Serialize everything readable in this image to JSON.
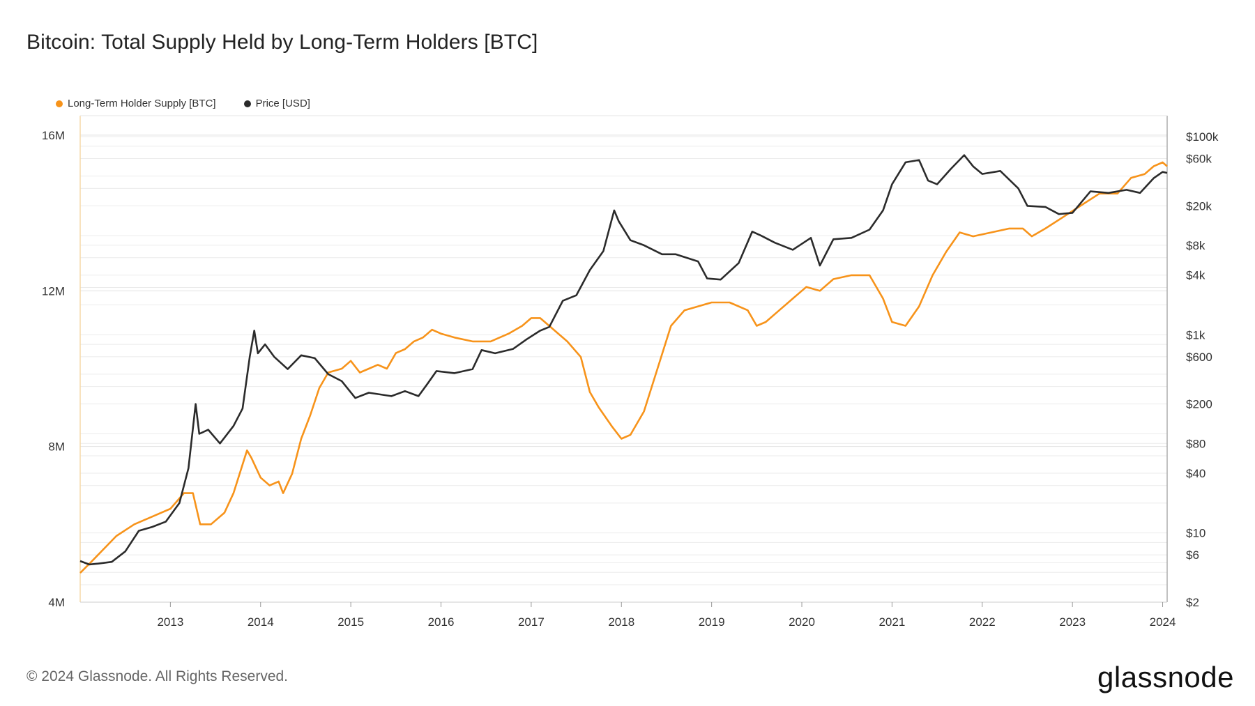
{
  "title": "Bitcoin: Total Supply Held by Long-Term Holders [BTC]",
  "footer": {
    "copyright": "© 2024 Glassnode. All Rights Reserved.",
    "logo": "glassnode"
  },
  "colors": {
    "lth_supply": "#F7931A",
    "price": "#2B2B2B",
    "grid": "#EBEBEB",
    "axis": "#BBBBBB"
  },
  "chart_data": {
    "type": "line",
    "title": "Bitcoin: Total Supply Held by Long-Term Holders [BTC]",
    "legend_position": "top-left",
    "grid": true,
    "x_ticks": [
      "2013",
      "2014",
      "2015",
      "2016",
      "2017",
      "2018",
      "2019",
      "2020",
      "2021",
      "2022",
      "2023",
      "2024"
    ],
    "xlim": [
      2012.0,
      2024.05
    ],
    "y_left": {
      "ticks": [
        4000000,
        8000000,
        12000000,
        16000000
      ],
      "tick_labels": [
        "4M",
        "8M",
        "12M",
        "16M"
      ],
      "lim": [
        4000000,
        16500000
      ]
    },
    "y_right": {
      "scale": "log",
      "ticks": [
        2,
        6,
        10,
        40,
        80,
        200,
        600,
        1000,
        4000,
        8000,
        20000,
        60000,
        100000
      ],
      "tick_labels": [
        "$2",
        "$6",
        "$10",
        "$40",
        "$80",
        "$200",
        "$600",
        "$1k",
        "$4k",
        "$8k",
        "$20k",
        "$60k",
        "$100k"
      ],
      "lim": [
        2,
        100000
      ]
    },
    "series": [
      {
        "name": "Long-Term Holder Supply [BTC]",
        "axis": "left",
        "points": [
          [
            2012.0,
            4.75
          ],
          [
            2012.15,
            5.1
          ],
          [
            2012.4,
            5.7
          ],
          [
            2012.6,
            6.0
          ],
          [
            2012.8,
            6.2
          ],
          [
            2013.0,
            6.4
          ],
          [
            2013.15,
            6.8
          ],
          [
            2013.25,
            6.8
          ],
          [
            2013.33,
            6.0
          ],
          [
            2013.45,
            6.0
          ],
          [
            2013.6,
            6.3
          ],
          [
            2013.7,
            6.8
          ],
          [
            2013.85,
            7.9
          ],
          [
            2013.9,
            7.7
          ],
          [
            2014.0,
            7.2
          ],
          [
            2014.1,
            7.0
          ],
          [
            2014.2,
            7.1
          ],
          [
            2014.25,
            6.8
          ],
          [
            2014.35,
            7.3
          ],
          [
            2014.45,
            8.2
          ],
          [
            2014.55,
            8.8
          ],
          [
            2014.65,
            9.5
          ],
          [
            2014.75,
            9.9
          ],
          [
            2014.9,
            10.0
          ],
          [
            2015.0,
            10.2
          ],
          [
            2015.1,
            9.9
          ],
          [
            2015.2,
            10.0
          ],
          [
            2015.3,
            10.1
          ],
          [
            2015.4,
            10.0
          ],
          [
            2015.5,
            10.4
          ],
          [
            2015.6,
            10.5
          ],
          [
            2015.7,
            10.7
          ],
          [
            2015.8,
            10.8
          ],
          [
            2015.9,
            11.0
          ],
          [
            2016.0,
            10.9
          ],
          [
            2016.15,
            10.8
          ],
          [
            2016.35,
            10.7
          ],
          [
            2016.55,
            10.7
          ],
          [
            2016.75,
            10.9
          ],
          [
            2016.9,
            11.1
          ],
          [
            2017.0,
            11.3
          ],
          [
            2017.1,
            11.3
          ],
          [
            2017.25,
            11.0
          ],
          [
            2017.4,
            10.7
          ],
          [
            2017.55,
            10.3
          ],
          [
            2017.65,
            9.4
          ],
          [
            2017.75,
            9.0
          ],
          [
            2017.9,
            8.5
          ],
          [
            2018.0,
            8.2
          ],
          [
            2018.1,
            8.3
          ],
          [
            2018.25,
            8.9
          ],
          [
            2018.4,
            10.0
          ],
          [
            2018.55,
            11.1
          ],
          [
            2018.7,
            11.5
          ],
          [
            2018.85,
            11.6
          ],
          [
            2019.0,
            11.7
          ],
          [
            2019.2,
            11.7
          ],
          [
            2019.4,
            11.5
          ],
          [
            2019.5,
            11.1
          ],
          [
            2019.6,
            11.2
          ],
          [
            2019.75,
            11.5
          ],
          [
            2019.9,
            11.8
          ],
          [
            2020.05,
            12.1
          ],
          [
            2020.2,
            12.0
          ],
          [
            2020.35,
            12.3
          ],
          [
            2020.55,
            12.4
          ],
          [
            2020.75,
            12.4
          ],
          [
            2020.9,
            11.8
          ],
          [
            2021.0,
            11.2
          ],
          [
            2021.15,
            11.1
          ],
          [
            2021.3,
            11.6
          ],
          [
            2021.45,
            12.4
          ],
          [
            2021.6,
            13.0
          ],
          [
            2021.75,
            13.5
          ],
          [
            2021.9,
            13.4
          ],
          [
            2022.1,
            13.5
          ],
          [
            2022.3,
            13.6
          ],
          [
            2022.45,
            13.6
          ],
          [
            2022.55,
            13.4
          ],
          [
            2022.7,
            13.6
          ],
          [
            2022.9,
            13.9
          ],
          [
            2023.1,
            14.2
          ],
          [
            2023.3,
            14.5
          ],
          [
            2023.5,
            14.5
          ],
          [
            2023.65,
            14.9
          ],
          [
            2023.8,
            15.0
          ],
          [
            2023.9,
            15.2
          ],
          [
            2024.0,
            15.3
          ],
          [
            2024.05,
            15.2
          ]
        ]
      },
      {
        "name": "Price [USD]",
        "axis": "right",
        "points": [
          [
            2012.0,
            5.2
          ],
          [
            2012.1,
            4.8
          ],
          [
            2012.2,
            4.9
          ],
          [
            2012.35,
            5.1
          ],
          [
            2012.5,
            6.5
          ],
          [
            2012.65,
            10.5
          ],
          [
            2012.8,
            11.5
          ],
          [
            2012.95,
            13.0
          ],
          [
            2013.1,
            20.0
          ],
          [
            2013.2,
            45.0
          ],
          [
            2013.28,
            200.0
          ],
          [
            2013.32,
            100.0
          ],
          [
            2013.42,
            110.0
          ],
          [
            2013.55,
            80.0
          ],
          [
            2013.7,
            120.0
          ],
          [
            2013.8,
            180.0
          ],
          [
            2013.88,
            600.0
          ],
          [
            2013.93,
            1100.0
          ],
          [
            2013.97,
            650.0
          ],
          [
            2014.05,
            800.0
          ],
          [
            2014.15,
            600.0
          ],
          [
            2014.3,
            450.0
          ],
          [
            2014.45,
            620.0
          ],
          [
            2014.6,
            580.0
          ],
          [
            2014.75,
            400.0
          ],
          [
            2014.9,
            340.0
          ],
          [
            2015.05,
            230.0
          ],
          [
            2015.2,
            260.0
          ],
          [
            2015.45,
            240.0
          ],
          [
            2015.6,
            270.0
          ],
          [
            2015.75,
            240.0
          ],
          [
            2015.85,
            320.0
          ],
          [
            2015.95,
            430.0
          ],
          [
            2016.15,
            410.0
          ],
          [
            2016.35,
            450.0
          ],
          [
            2016.45,
            700.0
          ],
          [
            2016.6,
            650.0
          ],
          [
            2016.8,
            720.0
          ],
          [
            2016.95,
            900.0
          ],
          [
            2017.1,
            1100.0
          ],
          [
            2017.2,
            1200.0
          ],
          [
            2017.35,
            2200.0
          ],
          [
            2017.5,
            2500.0
          ],
          [
            2017.65,
            4500.0
          ],
          [
            2017.8,
            7000.0
          ],
          [
            2017.92,
            18000.0
          ],
          [
            2017.97,
            14000.0
          ],
          [
            2018.1,
            9000.0
          ],
          [
            2018.25,
            8000.0
          ],
          [
            2018.45,
            6500.0
          ],
          [
            2018.6,
            6500.0
          ],
          [
            2018.85,
            5500.0
          ],
          [
            2018.95,
            3700.0
          ],
          [
            2019.1,
            3600.0
          ],
          [
            2019.3,
            5300.0
          ],
          [
            2019.45,
            11000.0
          ],
          [
            2019.55,
            10000.0
          ],
          [
            2019.7,
            8500.0
          ],
          [
            2019.9,
            7200.0
          ],
          [
            2020.1,
            9500.0
          ],
          [
            2020.2,
            5000.0
          ],
          [
            2020.35,
            9200.0
          ],
          [
            2020.55,
            9500.0
          ],
          [
            2020.75,
            11500.0
          ],
          [
            2020.9,
            18000.0
          ],
          [
            2021.0,
            33000.0
          ],
          [
            2021.15,
            55000.0
          ],
          [
            2021.3,
            58000.0
          ],
          [
            2021.4,
            36000.0
          ],
          [
            2021.5,
            33000.0
          ],
          [
            2021.65,
            47000.0
          ],
          [
            2021.8,
            65000.0
          ],
          [
            2021.9,
            50000.0
          ],
          [
            2022.0,
            42000.0
          ],
          [
            2022.2,
            45000.0
          ],
          [
            2022.4,
            30000.0
          ],
          [
            2022.5,
            20000.0
          ],
          [
            2022.7,
            19500.0
          ],
          [
            2022.85,
            16500.0
          ],
          [
            2023.0,
            17000.0
          ],
          [
            2023.2,
            28000.0
          ],
          [
            2023.4,
            27000.0
          ],
          [
            2023.6,
            29000.0
          ],
          [
            2023.75,
            27000.0
          ],
          [
            2023.9,
            38000.0
          ],
          [
            2024.0,
            44000.0
          ],
          [
            2024.05,
            43000.0
          ]
        ]
      }
    ]
  }
}
